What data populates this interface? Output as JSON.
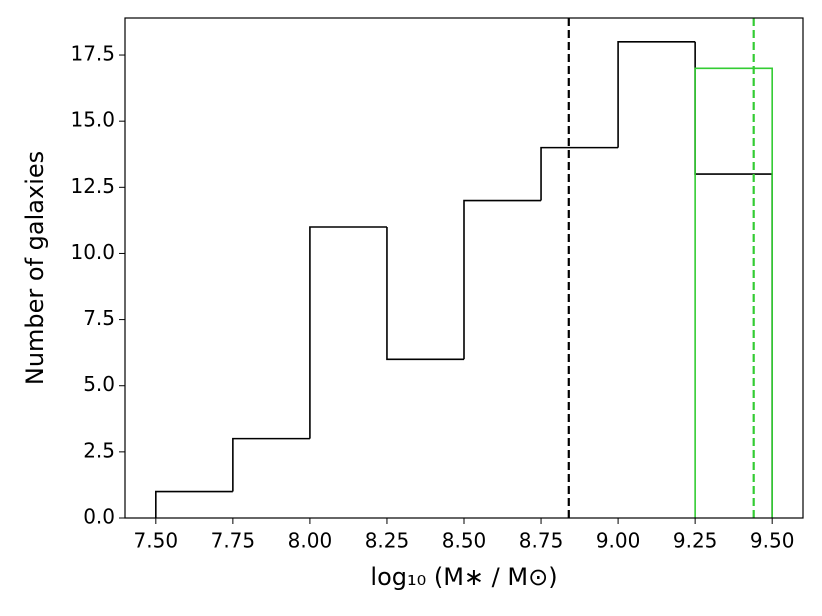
{
  "chart_data": {
    "type": "histogram",
    "x_label": "log₁₀ (M∗ / M⊙)",
    "y_label": "Number of galaxies",
    "series": [
      {
        "color": "#000000",
        "bins": [
          7.5,
          7.75,
          8.0,
          8.25,
          8.5,
          8.75,
          9.0,
          9.25,
          9.5
        ],
        "values": [
          1,
          3,
          11,
          6,
          12,
          14,
          18,
          13
        ]
      },
      {
        "color": "#33cc33",
        "bins": [
          9.25,
          9.5
        ],
        "values": [
          17
        ]
      }
    ],
    "vlines": [
      {
        "x": 8.84,
        "color": "#000000"
      },
      {
        "x": 9.44,
        "color": "#33cc33"
      }
    ],
    "xlim": [
      7.4,
      9.6
    ],
    "ylim": [
      0,
      18.9
    ],
    "xticks": [
      {
        "value": 7.5,
        "label": "7.50"
      },
      {
        "value": 7.75,
        "label": "7.75"
      },
      {
        "value": 8.0,
        "label": "8.00"
      },
      {
        "value": 8.25,
        "label": "8.25"
      },
      {
        "value": 8.5,
        "label": "8.50"
      },
      {
        "value": 8.75,
        "label": "8.75"
      },
      {
        "value": 9.0,
        "label": "9.00"
      },
      {
        "value": 9.25,
        "label": "9.25"
      },
      {
        "value": 9.5,
        "label": "9.50"
      }
    ],
    "yticks": [
      {
        "value": 0,
        "label": "0.0"
      },
      {
        "value": 2.5,
        "label": "2.5"
      },
      {
        "value": 5,
        "label": "5.0"
      },
      {
        "value": 7.5,
        "label": "7.5"
      },
      {
        "value": 10,
        "label": "10.0"
      },
      {
        "value": 12.5,
        "label": "12.5"
      },
      {
        "value": 15,
        "label": "15.0"
      },
      {
        "value": 17.5,
        "label": "17.5"
      }
    ]
  }
}
